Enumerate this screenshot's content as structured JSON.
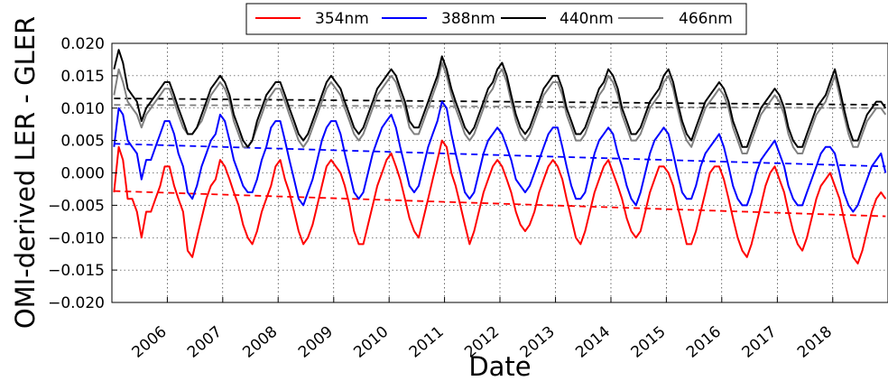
{
  "chart_data": {
    "type": "line",
    "title": "",
    "xlabel": "Date",
    "ylabel": "OMI-derived LER - GLER",
    "xlim": [
      "2005-01-01",
      "2018-12-31"
    ],
    "ylim": [
      -0.02,
      0.02
    ],
    "grid": true,
    "legend_position": "top-center",
    "x_tick_labels": [
      "2006",
      "2007",
      "2008",
      "2009",
      "2010",
      "2011",
      "2012",
      "2013",
      "2014",
      "2015",
      "2016",
      "2017",
      "2018"
    ],
    "y_tick_labels": [
      "−0.020",
      "−0.015",
      "−0.010",
      "−0.005",
      "0.000",
      "0.005",
      "0.010",
      "0.015",
      "0.020"
    ],
    "x_months": [
      "2005-01",
      "2005-02",
      "2005-03",
      "2005-04",
      "2005-05",
      "2005-06",
      "2005-07",
      "2005-08",
      "2005-09",
      "2005-10",
      "2005-11",
      "2005-12",
      "2006-01",
      "2006-02",
      "2006-03",
      "2006-04",
      "2006-05",
      "2006-06",
      "2006-07",
      "2006-08",
      "2006-09",
      "2006-10",
      "2006-11",
      "2006-12",
      "2007-01",
      "2007-02",
      "2007-03",
      "2007-04",
      "2007-05",
      "2007-06",
      "2007-07",
      "2007-08",
      "2007-09",
      "2007-10",
      "2007-11",
      "2007-12",
      "2008-01",
      "2008-02",
      "2008-03",
      "2008-04",
      "2008-05",
      "2008-06",
      "2008-07",
      "2008-08",
      "2008-09",
      "2008-10",
      "2008-11",
      "2008-12",
      "2009-01",
      "2009-02",
      "2009-03",
      "2009-04",
      "2009-05",
      "2009-06",
      "2009-07",
      "2009-08",
      "2009-09",
      "2009-10",
      "2009-11",
      "2009-12",
      "2010-01",
      "2010-02",
      "2010-03",
      "2010-04",
      "2010-05",
      "2010-06",
      "2010-07",
      "2010-08",
      "2010-09",
      "2010-10",
      "2010-11",
      "2010-12",
      "2011-01",
      "2011-02",
      "2011-03",
      "2011-04",
      "2011-05",
      "2011-06",
      "2011-07",
      "2011-08",
      "2011-09",
      "2011-10",
      "2011-11",
      "2011-12",
      "2012-01",
      "2012-02",
      "2012-03",
      "2012-04",
      "2012-05",
      "2012-06",
      "2012-07",
      "2012-08",
      "2012-09",
      "2012-10",
      "2012-11",
      "2012-12",
      "2013-01",
      "2013-02",
      "2013-03",
      "2013-04",
      "2013-05",
      "2013-06",
      "2013-07",
      "2013-08",
      "2013-09",
      "2013-10",
      "2013-11",
      "2013-12",
      "2014-01",
      "2014-02",
      "2014-03",
      "2014-04",
      "2014-05",
      "2014-06",
      "2014-07",
      "2014-08",
      "2014-09",
      "2014-10",
      "2014-11",
      "2014-12",
      "2015-01",
      "2015-02",
      "2015-03",
      "2015-04",
      "2015-05",
      "2015-06",
      "2015-07",
      "2015-08",
      "2015-09",
      "2015-10",
      "2015-11",
      "2015-12",
      "2016-01",
      "2016-02",
      "2016-03",
      "2016-04",
      "2016-05",
      "2016-06",
      "2016-07",
      "2016-08",
      "2016-09",
      "2016-10",
      "2016-11",
      "2016-12",
      "2017-01",
      "2017-02",
      "2017-03",
      "2017-04",
      "2017-05",
      "2017-06",
      "2017-07",
      "2017-08",
      "2017-09",
      "2017-10",
      "2017-11",
      "2017-12",
      "2018-01",
      "2018-02",
      "2018-03",
      "2018-04",
      "2018-05",
      "2018-06",
      "2018-07",
      "2018-08",
      "2018-09",
      "2018-10",
      "2018-11",
      "2018-12"
    ],
    "series": [
      {
        "name": "354nm",
        "color": "#ff0000",
        "values": [
          -0.003,
          0.004,
          0.002,
          -0.004,
          -0.004,
          -0.006,
          -0.01,
          -0.006,
          -0.006,
          -0.004,
          -0.002,
          0.001,
          0.001,
          -0.002,
          -0.004,
          -0.006,
          -0.012,
          -0.013,
          -0.01,
          -0.007,
          -0.004,
          -0.002,
          -0.001,
          0.002,
          0.001,
          -0.001,
          -0.003,
          -0.005,
          -0.008,
          -0.01,
          -0.011,
          -0.009,
          -0.006,
          -0.004,
          -0.002,
          0.001,
          0.002,
          -0.001,
          -0.003,
          -0.006,
          -0.009,
          -0.011,
          -0.01,
          -0.008,
          -0.005,
          -0.002,
          0.001,
          0.002,
          0.001,
          0.0,
          -0.002,
          -0.005,
          -0.009,
          -0.011,
          -0.011,
          -0.008,
          -0.005,
          -0.002,
          0.0,
          0.002,
          0.003,
          0.001,
          -0.001,
          -0.004,
          -0.007,
          -0.009,
          -0.01,
          -0.007,
          -0.004,
          -0.001,
          0.002,
          0.005,
          0.004,
          0.0,
          -0.002,
          -0.005,
          -0.008,
          -0.011,
          -0.009,
          -0.006,
          -0.003,
          -0.001,
          0.001,
          0.002,
          0.001,
          -0.001,
          -0.003,
          -0.006,
          -0.008,
          -0.009,
          -0.008,
          -0.006,
          -0.003,
          -0.001,
          0.001,
          0.002,
          0.001,
          -0.001,
          -0.004,
          -0.007,
          -0.01,
          -0.011,
          -0.009,
          -0.006,
          -0.003,
          -0.001,
          0.001,
          0.002,
          0.0,
          -0.002,
          -0.004,
          -0.007,
          -0.009,
          -0.01,
          -0.009,
          -0.006,
          -0.003,
          -0.001,
          0.001,
          0.001,
          0.0,
          -0.002,
          -0.005,
          -0.008,
          -0.011,
          -0.011,
          -0.009,
          -0.006,
          -0.003,
          0.0,
          0.001,
          0.001,
          -0.001,
          -0.004,
          -0.007,
          -0.01,
          -0.012,
          -0.013,
          -0.011,
          -0.008,
          -0.005,
          -0.002,
          0.0,
          0.001,
          -0.001,
          -0.003,
          -0.006,
          -0.009,
          -0.011,
          -0.012,
          -0.01,
          -0.007,
          -0.004,
          -0.002,
          -0.001,
          0.0,
          -0.002,
          -0.004,
          -0.007,
          -0.01,
          -0.013,
          -0.014,
          -0.012,
          -0.009,
          -0.006,
          -0.004,
          -0.003,
          -0.004
        ]
      },
      {
        "name": "388nm",
        "color": "#0000ff",
        "values": [
          0.004,
          0.01,
          0.009,
          0.005,
          0.004,
          0.003,
          -0.001,
          0.002,
          0.002,
          0.004,
          0.006,
          0.008,
          0.008,
          0.006,
          0.003,
          0.001,
          -0.003,
          -0.004,
          -0.002,
          0.001,
          0.003,
          0.005,
          0.006,
          0.009,
          0.008,
          0.005,
          0.002,
          0.0,
          -0.002,
          -0.003,
          -0.003,
          -0.001,
          0.002,
          0.004,
          0.007,
          0.008,
          0.008,
          0.005,
          0.002,
          -0.001,
          -0.004,
          -0.005,
          -0.003,
          -0.001,
          0.002,
          0.005,
          0.007,
          0.008,
          0.008,
          0.006,
          0.003,
          0.0,
          -0.003,
          -0.004,
          -0.003,
          0.0,
          0.003,
          0.005,
          0.007,
          0.008,
          0.009,
          0.007,
          0.004,
          0.001,
          -0.002,
          -0.003,
          -0.002,
          0.001,
          0.004,
          0.006,
          0.008,
          0.011,
          0.01,
          0.006,
          0.003,
          0.0,
          -0.003,
          -0.004,
          -0.003,
          0.0,
          0.003,
          0.005,
          0.006,
          0.007,
          0.006,
          0.004,
          0.002,
          -0.001,
          -0.002,
          -0.003,
          -0.002,
          0.0,
          0.002,
          0.004,
          0.006,
          0.007,
          0.007,
          0.004,
          0.001,
          -0.002,
          -0.004,
          -0.004,
          -0.003,
          0.0,
          0.003,
          0.005,
          0.006,
          0.007,
          0.006,
          0.003,
          0.001,
          -0.002,
          -0.004,
          -0.005,
          -0.003,
          0.0,
          0.003,
          0.005,
          0.006,
          0.007,
          0.006,
          0.003,
          0.0,
          -0.003,
          -0.004,
          -0.004,
          -0.002,
          0.001,
          0.003,
          0.004,
          0.005,
          0.006,
          0.004,
          0.001,
          -0.002,
          -0.004,
          -0.005,
          -0.005,
          -0.003,
          0.0,
          0.002,
          0.003,
          0.004,
          0.005,
          0.003,
          0.001,
          -0.002,
          -0.004,
          -0.005,
          -0.005,
          -0.003,
          -0.001,
          0.001,
          0.003,
          0.004,
          0.004,
          0.003,
          0.0,
          -0.003,
          -0.005,
          -0.006,
          -0.005,
          -0.003,
          -0.001,
          0.001,
          0.002,
          0.003,
          0.0
        ]
      },
      {
        "name": "440nm",
        "color": "#000000",
        "values": [
          0.016,
          0.019,
          0.017,
          0.013,
          0.012,
          0.011,
          0.008,
          0.01,
          0.011,
          0.012,
          0.013,
          0.014,
          0.014,
          0.012,
          0.01,
          0.008,
          0.006,
          0.006,
          0.007,
          0.009,
          0.011,
          0.013,
          0.014,
          0.015,
          0.014,
          0.012,
          0.009,
          0.007,
          0.005,
          0.004,
          0.005,
          0.008,
          0.01,
          0.012,
          0.013,
          0.014,
          0.014,
          0.012,
          0.01,
          0.008,
          0.006,
          0.005,
          0.006,
          0.008,
          0.01,
          0.012,
          0.014,
          0.015,
          0.014,
          0.013,
          0.011,
          0.009,
          0.007,
          0.006,
          0.007,
          0.009,
          0.011,
          0.013,
          0.014,
          0.015,
          0.016,
          0.015,
          0.013,
          0.011,
          0.008,
          0.007,
          0.007,
          0.009,
          0.011,
          0.013,
          0.015,
          0.018,
          0.016,
          0.013,
          0.011,
          0.009,
          0.007,
          0.006,
          0.007,
          0.009,
          0.011,
          0.013,
          0.014,
          0.016,
          0.017,
          0.015,
          0.012,
          0.009,
          0.007,
          0.006,
          0.007,
          0.009,
          0.011,
          0.013,
          0.014,
          0.015,
          0.015,
          0.013,
          0.01,
          0.008,
          0.006,
          0.006,
          0.007,
          0.009,
          0.011,
          0.013,
          0.014,
          0.016,
          0.015,
          0.013,
          0.01,
          0.008,
          0.006,
          0.006,
          0.007,
          0.009,
          0.011,
          0.012,
          0.013,
          0.015,
          0.016,
          0.014,
          0.011,
          0.008,
          0.006,
          0.005,
          0.007,
          0.009,
          0.011,
          0.012,
          0.013,
          0.014,
          0.013,
          0.011,
          0.008,
          0.006,
          0.004,
          0.004,
          0.006,
          0.008,
          0.01,
          0.011,
          0.012,
          0.013,
          0.012,
          0.01,
          0.007,
          0.005,
          0.004,
          0.004,
          0.006,
          0.008,
          0.01,
          0.011,
          0.012,
          0.014,
          0.016,
          0.013,
          0.01,
          0.007,
          0.005,
          0.005,
          0.007,
          0.009,
          0.01,
          0.011,
          0.011,
          0.01
        ]
      },
      {
        "name": "466nm",
        "color": "#808080",
        "values": [
          0.012,
          0.016,
          0.014,
          0.011,
          0.01,
          0.009,
          0.007,
          0.009,
          0.01,
          0.011,
          0.012,
          0.013,
          0.013,
          0.011,
          0.009,
          0.007,
          0.006,
          0.006,
          0.007,
          0.008,
          0.01,
          0.012,
          0.013,
          0.014,
          0.013,
          0.011,
          0.008,
          0.006,
          0.004,
          0.004,
          0.005,
          0.007,
          0.009,
          0.011,
          0.012,
          0.013,
          0.013,
          0.011,
          0.009,
          0.007,
          0.005,
          0.004,
          0.005,
          0.007,
          0.009,
          0.011,
          0.013,
          0.014,
          0.013,
          0.012,
          0.01,
          0.008,
          0.006,
          0.005,
          0.006,
          0.008,
          0.01,
          0.012,
          0.013,
          0.014,
          0.015,
          0.014,
          0.012,
          0.01,
          0.007,
          0.006,
          0.006,
          0.008,
          0.01,
          0.012,
          0.014,
          0.017,
          0.015,
          0.012,
          0.01,
          0.008,
          0.006,
          0.005,
          0.006,
          0.008,
          0.01,
          0.012,
          0.013,
          0.015,
          0.016,
          0.014,
          0.011,
          0.008,
          0.006,
          0.005,
          0.006,
          0.008,
          0.01,
          0.012,
          0.013,
          0.014,
          0.014,
          0.012,
          0.009,
          0.007,
          0.005,
          0.005,
          0.006,
          0.008,
          0.01,
          0.012,
          0.013,
          0.015,
          0.014,
          0.012,
          0.009,
          0.007,
          0.005,
          0.005,
          0.006,
          0.008,
          0.01,
          0.011,
          0.012,
          0.014,
          0.015,
          0.013,
          0.01,
          0.007,
          0.005,
          0.004,
          0.006,
          0.008,
          0.01,
          0.011,
          0.012,
          0.013,
          0.012,
          0.01,
          0.007,
          0.005,
          0.003,
          0.003,
          0.005,
          0.007,
          0.009,
          0.01,
          0.011,
          0.012,
          0.011,
          0.009,
          0.006,
          0.004,
          0.003,
          0.003,
          0.005,
          0.007,
          0.009,
          0.01,
          0.011,
          0.013,
          0.015,
          0.012,
          0.009,
          0.006,
          0.004,
          0.004,
          0.006,
          0.008,
          0.009,
          0.01,
          0.01,
          0.009
        ]
      }
    ],
    "trend_lines": [
      {
        "series": "354nm",
        "color": "#ff0000",
        "start": -0.0028,
        "end": -0.0067
      },
      {
        "series": "388nm",
        "color": "#0000ff",
        "start": 0.0045,
        "end": 0.001
      },
      {
        "series": "440nm",
        "color": "#000000",
        "start": 0.0115,
        "end": 0.0105
      },
      {
        "series": "466nm",
        "color": "#808080",
        "start": 0.0105,
        "end": 0.01
      }
    ]
  }
}
